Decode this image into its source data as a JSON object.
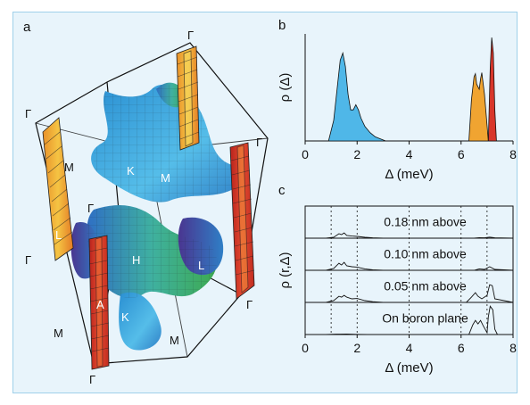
{
  "panels": {
    "a": {
      "letter": "a"
    },
    "b": {
      "letter": "b"
    },
    "c": {
      "letter": "c"
    }
  },
  "fermi_surface": {
    "labels": {
      "gamma": "Γ",
      "M": "M",
      "K": "K",
      "H": "H",
      "L": "L",
      "A": "A"
    },
    "colors": {
      "sigma_orange": "#f0a431",
      "sigma_red": "#d8362a",
      "sigma_yellow": "#f0c93a",
      "pi_blue": "#2f9fdc",
      "pi_light_blue": "#4fb7e8",
      "pi_green": "#3faa54",
      "pi_purple": "#5b3f9c",
      "edge": "#111111"
    }
  },
  "chart_data": [
    {
      "type": "area",
      "panel": "b",
      "title": "",
      "xlabel": "Δ (meV)",
      "ylabel": "ρ (Δ)",
      "xlim": [
        0,
        8
      ],
      "xticks": [
        0,
        2,
        4,
        6,
        8
      ],
      "series": [
        {
          "x": [
            0.9,
            1.1,
            1.25,
            1.35,
            1.45,
            1.55,
            1.65,
            1.75,
            1.85,
            1.95,
            2.05,
            2.15,
            2.3,
            2.5,
            2.7,
            2.9,
            3.1
          ],
          "y": [
            0,
            0.2,
            0.55,
            0.78,
            0.85,
            0.72,
            0.45,
            0.3,
            0.3,
            0.35,
            0.3,
            0.22,
            0.14,
            0.08,
            0.04,
            0.02,
            0
          ]
        },
        {
          "x": [
            6.3,
            6.4,
            6.5,
            6.55,
            6.6,
            6.7,
            6.75,
            6.8,
            6.9,
            7.0,
            7.05
          ],
          "y": [
            0,
            0.4,
            0.62,
            0.65,
            0.55,
            0.5,
            0.6,
            0.66,
            0.45,
            0.15,
            0
          ]
        },
        {
          "x": [
            7.05,
            7.12,
            7.18,
            7.24,
            7.3,
            7.36
          ],
          "y": [
            0,
            0.7,
            1.0,
            0.85,
            0.3,
            0
          ]
        }
      ],
      "colors": [
        "#4fb7e8",
        "#f0a431",
        "#d8362a"
      ]
    },
    {
      "type": "line",
      "panel": "c",
      "title": "",
      "xlabel": "Δ (meV)",
      "ylabel": "ρ (r,Δ)",
      "xlim": [
        0,
        8
      ],
      "xticks": [
        0,
        2,
        4,
        6,
        8
      ],
      "vlines": [
        1.0,
        2.0,
        4.0,
        6.0,
        7.0
      ],
      "series": [
        {
          "name": "0.18 nm above",
          "x": [
            0.8,
            1.1,
            1.3,
            1.4,
            1.5,
            1.6,
            1.8,
            2.0,
            2.3,
            2.6,
            3.0,
            6.5,
            6.7,
            6.9,
            7.1,
            7.3,
            8.0
          ],
          "y": [
            0,
            0.05,
            0.25,
            0.2,
            0.3,
            0.15,
            0.12,
            0.1,
            0.05,
            0.02,
            0,
            0,
            0.03,
            0.02,
            0.06,
            0.02,
            0
          ]
        },
        {
          "name": "0.10 nm above",
          "x": [
            0.8,
            1.1,
            1.3,
            1.4,
            1.5,
            1.6,
            1.8,
            2.0,
            2.3,
            2.6,
            3.0,
            6.5,
            6.7,
            6.9,
            7.1,
            7.3,
            8.0
          ],
          "y": [
            0,
            0.1,
            0.4,
            0.3,
            0.45,
            0.25,
            0.2,
            0.18,
            0.08,
            0.03,
            0,
            0,
            0.08,
            0.05,
            0.2,
            0.05,
            0
          ]
        },
        {
          "name": "0.05 nm above",
          "x": [
            0.8,
            1.1,
            1.3,
            1.4,
            1.5,
            1.6,
            1.8,
            2.0,
            2.3,
            2.6,
            3.0,
            6.2,
            6.4,
            6.55,
            6.65,
            6.8,
            7.0,
            7.1,
            7.2,
            7.3,
            8.0
          ],
          "y": [
            0,
            0.1,
            0.35,
            0.3,
            0.4,
            0.3,
            0.2,
            0.22,
            0.1,
            0.04,
            0,
            0,
            0.3,
            0.55,
            0.35,
            0.2,
            0.4,
            1.0,
            0.95,
            0.2,
            0
          ]
        },
        {
          "name": "On boron plane",
          "x": [
            0.8,
            1.2,
            1.6,
            2.0,
            2.4,
            6.3,
            6.45,
            6.55,
            6.65,
            6.75,
            6.85,
            7.0,
            7.05,
            7.12,
            7.22,
            7.3,
            7.4,
            8.0
          ],
          "y": [
            0,
            0.02,
            0.03,
            0.01,
            0,
            0,
            0.55,
            0.8,
            0.6,
            0.8,
            0.5,
            0.1,
            1.0,
            1.6,
            1.4,
            0.3,
            0,
            0
          ]
        }
      ]
    }
  ]
}
